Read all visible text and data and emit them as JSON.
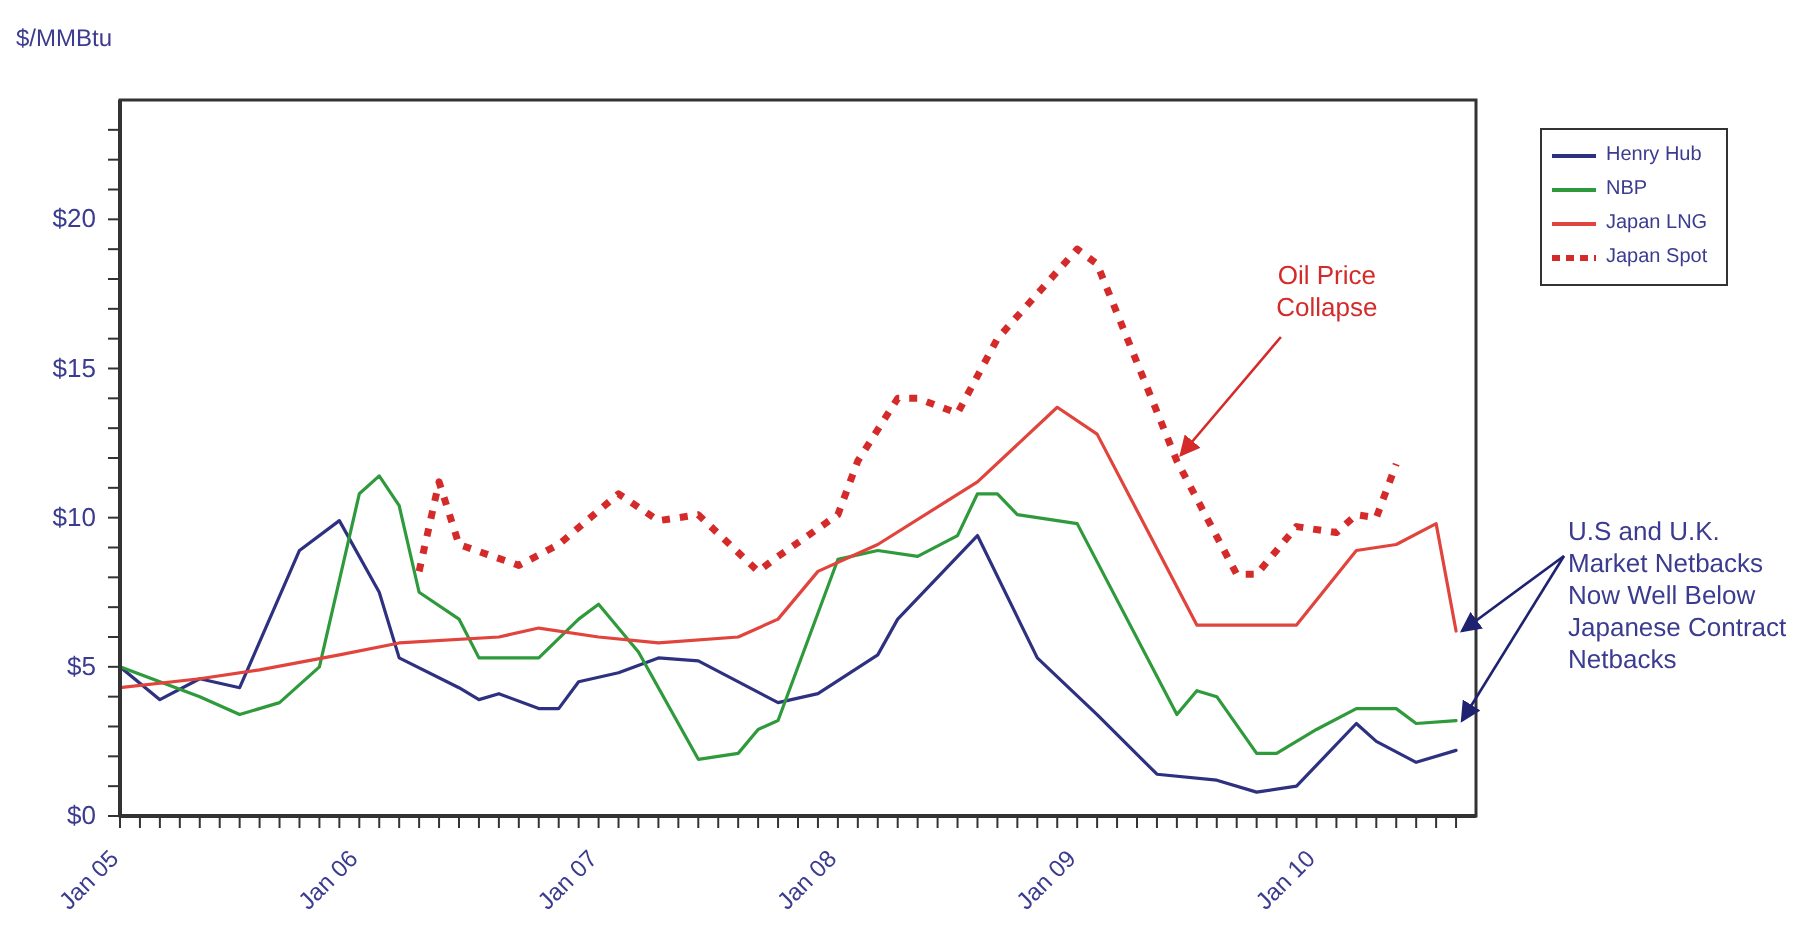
{
  "chart_data": {
    "type": "line",
    "ylabel": "$/MMBtu",
    "legend": "right",
    "marker": "none",
    "xlim": [
      "2005-01",
      "2010-09"
    ],
    "ylim": [
      0,
      24
    ],
    "yticks": [
      {
        "value": 0,
        "label": "$0"
      },
      {
        "value": 1,
        "label": null
      },
      {
        "value": 2,
        "label": null
      },
      {
        "value": 3,
        "label": null
      },
      {
        "value": 4,
        "label": null
      },
      {
        "value": 5,
        "label": "$5"
      },
      {
        "value": 6,
        "label": null
      },
      {
        "value": 7,
        "label": null
      },
      {
        "value": 8,
        "label": null
      },
      {
        "value": 9,
        "label": null
      },
      {
        "value": 10,
        "label": "$10"
      },
      {
        "value": 11,
        "label": null
      },
      {
        "value": 12,
        "label": null
      },
      {
        "value": 13,
        "label": null
      },
      {
        "value": 14,
        "label": null
      },
      {
        "value": 15,
        "label": "$15"
      },
      {
        "value": 16,
        "label": null
      },
      {
        "value": 17,
        "label": null
      },
      {
        "value": 18,
        "label": null
      },
      {
        "value": 19,
        "label": null
      },
      {
        "value": 20,
        "label": "$20"
      },
      {
        "value": 21,
        "label": null
      },
      {
        "value": 22,
        "label": null
      },
      {
        "value": 23,
        "label": null
      }
    ],
    "xticks": [
      {
        "value": "2005-01",
        "label": "Jan 05"
      },
      {
        "value": "2005-02",
        "label": null
      },
      {
        "value": "2005-03",
        "label": null
      },
      {
        "value": "2005-04",
        "label": null
      },
      {
        "value": "2005-05",
        "label": null
      },
      {
        "value": "2005-06",
        "label": null
      },
      {
        "value": "2005-07",
        "label": null
      },
      {
        "value": "2005-08",
        "label": null
      },
      {
        "value": "2005-09",
        "label": null
      },
      {
        "value": "2005-10",
        "label": null
      },
      {
        "value": "2005-11",
        "label": null
      },
      {
        "value": "2005-12",
        "label": null
      },
      {
        "value": "2006-01",
        "label": "Jan 06"
      },
      {
        "value": "2006-02",
        "label": null
      },
      {
        "value": "2006-03",
        "label": null
      },
      {
        "value": "2006-04",
        "label": null
      },
      {
        "value": "2006-05",
        "label": null
      },
      {
        "value": "2006-06",
        "label": null
      },
      {
        "value": "2006-07",
        "label": null
      },
      {
        "value": "2006-08",
        "label": null
      },
      {
        "value": "2006-09",
        "label": null
      },
      {
        "value": "2006-10",
        "label": null
      },
      {
        "value": "2006-11",
        "label": null
      },
      {
        "value": "2006-12",
        "label": null
      },
      {
        "value": "2007-01",
        "label": "Jan 07"
      },
      {
        "value": "2007-02",
        "label": null
      },
      {
        "value": "2007-03",
        "label": null
      },
      {
        "value": "2007-04",
        "label": null
      },
      {
        "value": "2007-05",
        "label": null
      },
      {
        "value": "2007-06",
        "label": null
      },
      {
        "value": "2007-07",
        "label": null
      },
      {
        "value": "2007-08",
        "label": null
      },
      {
        "value": "2007-09",
        "label": null
      },
      {
        "value": "2007-10",
        "label": null
      },
      {
        "value": "2007-11",
        "label": null
      },
      {
        "value": "2007-12",
        "label": null
      },
      {
        "value": "2008-01",
        "label": "Jan 08"
      },
      {
        "value": "2008-02",
        "label": null
      },
      {
        "value": "2008-03",
        "label": null
      },
      {
        "value": "2008-04",
        "label": null
      },
      {
        "value": "2008-05",
        "label": null
      },
      {
        "value": "2008-06",
        "label": null
      },
      {
        "value": "2008-07",
        "label": null
      },
      {
        "value": "2008-08",
        "label": null
      },
      {
        "value": "2008-09",
        "label": null
      },
      {
        "value": "2008-10",
        "label": null
      },
      {
        "value": "2008-11",
        "label": null
      },
      {
        "value": "2008-12",
        "label": null
      },
      {
        "value": "2009-01",
        "label": "Jan 09"
      },
      {
        "value": "2009-02",
        "label": null
      },
      {
        "value": "2009-03",
        "label": null
      },
      {
        "value": "2009-04",
        "label": null
      },
      {
        "value": "2009-05",
        "label": null
      },
      {
        "value": "2009-06",
        "label": null
      },
      {
        "value": "2009-07",
        "label": null
      },
      {
        "value": "2009-08",
        "label": null
      },
      {
        "value": "2009-09",
        "label": null
      },
      {
        "value": "2009-10",
        "label": null
      },
      {
        "value": "2009-11",
        "label": null
      },
      {
        "value": "2009-12",
        "label": null
      },
      {
        "value": "2010-01",
        "label": "Jan 10"
      },
      {
        "value": "2010-02",
        "label": null
      },
      {
        "value": "2010-03",
        "label": null
      },
      {
        "value": "2010-04",
        "label": null
      },
      {
        "value": "2010-05",
        "label": null
      },
      {
        "value": "2010-06",
        "label": null
      },
      {
        "value": "2010-07",
        "label": null
      },
      {
        "value": "2010-08",
        "label": null
      }
    ],
    "series": [
      {
        "name": "Henry Hub",
        "color": "#2e3180",
        "line_style": "solid",
        "x": [
          "2005-01",
          "2005-03",
          "2005-05",
          "2005-07",
          "2005-10",
          "2005-12",
          "2006-02",
          "2006-03",
          "2006-06",
          "2006-07",
          "2006-08",
          "2006-10",
          "2006-11",
          "2006-12",
          "2007-02",
          "2007-04",
          "2007-06",
          "2007-10",
          "2007-12",
          "2008-03",
          "2008-04",
          "2008-08",
          "2008-11",
          "2009-02",
          "2009-05",
          "2009-08",
          "2009-10",
          "2009-12",
          "2010-03",
          "2010-04",
          "2010-06",
          "2010-08"
        ],
        "values": [
          5.0,
          3.9,
          4.6,
          4.3,
          8.9,
          9.9,
          7.5,
          5.3,
          4.3,
          3.9,
          4.1,
          3.6,
          3.6,
          4.5,
          4.8,
          5.3,
          5.2,
          3.8,
          4.1,
          5.4,
          6.6,
          9.4,
          5.3,
          3.4,
          1.4,
          1.2,
          0.8,
          1.0,
          3.1,
          2.5,
          1.8,
          2.2
        ]
      },
      {
        "name": "NBP",
        "color": "#2f9a3c",
        "line_style": "solid",
        "x": [
          "2005-01",
          "2005-05",
          "2005-07",
          "2005-09",
          "2005-11",
          "2006-01",
          "2006-02",
          "2006-03",
          "2006-04",
          "2006-06",
          "2006-07",
          "2006-10",
          "2006-12",
          "2007-01",
          "2007-03",
          "2007-06",
          "2007-08",
          "2007-09",
          "2007-10",
          "2008-01",
          "2008-03",
          "2008-05",
          "2008-07",
          "2008-08",
          "2008-09",
          "2008-10",
          "2009-01",
          "2009-06",
          "2009-07",
          "2009-08",
          "2009-10",
          "2009-11",
          "2010-01",
          "2010-03",
          "2010-05",
          "2010-06",
          "2010-08"
        ],
        "values": [
          5.0,
          4.0,
          3.4,
          3.8,
          5.0,
          10.8,
          11.4,
          10.4,
          7.5,
          6.6,
          5.3,
          5.3,
          6.6,
          7.1,
          5.5,
          1.9,
          2.1,
          2.9,
          3.2,
          8.6,
          8.9,
          8.7,
          9.4,
          10.8,
          10.8,
          10.1,
          9.8,
          3.4,
          4.2,
          4.0,
          2.1,
          2.1,
          2.9,
          3.6,
          3.6,
          3.1,
          3.2
        ]
      },
      {
        "name": "Japan LNG",
        "color": "#e0443c",
        "line_style": "solid",
        "x": [
          "2005-01",
          "2005-05",
          "2005-08",
          "2005-12",
          "2006-03",
          "2006-08",
          "2006-10",
          "2007-01",
          "2007-04",
          "2007-08",
          "2007-10",
          "2007-12",
          "2008-03",
          "2008-08",
          "2008-12",
          "2009-02",
          "2009-07",
          "2009-12",
          "2010-03",
          "2010-05",
          "2010-07",
          "2010-08"
        ],
        "values": [
          4.3,
          4.6,
          4.9,
          5.4,
          5.8,
          6.0,
          6.3,
          6.0,
          5.8,
          6.0,
          6.6,
          8.2,
          9.1,
          11.2,
          13.7,
          12.8,
          6.4,
          6.4,
          8.9,
          9.1,
          9.8,
          6.2
        ]
      },
      {
        "name": "Japan Spot",
        "color": "#d42a2a",
        "line_style": "dotted",
        "x": [
          "2006-04",
          "2006-05",
          "2006-06",
          "2006-09",
          "2006-11",
          "2007-02",
          "2007-04",
          "2007-06",
          "2007-09",
          "2007-10",
          "2008-01",
          "2008-02",
          "2008-04",
          "2008-05",
          "2008-07",
          "2008-09",
          "2009-01",
          "2009-02",
          "2009-06",
          "2009-09",
          "2009-10",
          "2009-12",
          "2010-02",
          "2010-03",
          "2010-04",
          "2010-05"
        ],
        "values": [
          8.2,
          11.2,
          9.1,
          8.4,
          9.1,
          10.8,
          9.9,
          10.1,
          8.2,
          8.7,
          10.1,
          11.9,
          14.0,
          14.0,
          13.5,
          16.0,
          19.0,
          18.5,
          11.9,
          8.1,
          8.1,
          9.7,
          9.5,
          10.1,
          10.0,
          11.8
        ]
      }
    ],
    "annotations": [
      {
        "text": "Oil Price Collapse",
        "x": "2009-06",
        "y": 11.9
      },
      {
        "text": "U.S and U.K. Market Netbacks Now Well Below Japanese Contract Netbacks",
        "x": "2010-08",
        "y": 6.2
      }
    ]
  }
}
